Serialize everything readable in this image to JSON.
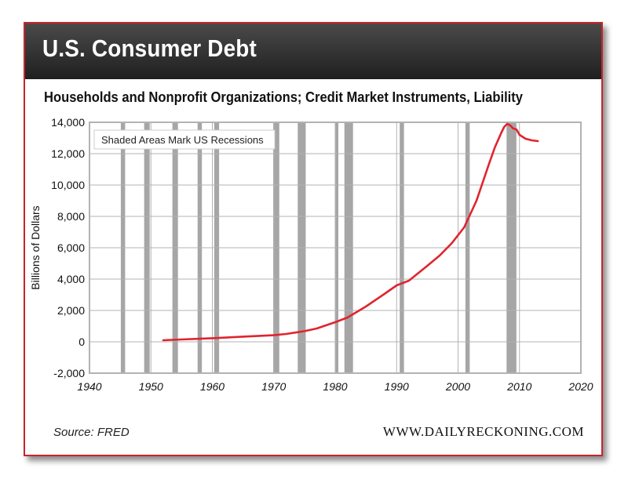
{
  "banner": {
    "title": "U.S. Consumer Debt"
  },
  "footer": {
    "source": "Source: FRED",
    "website": "WWW.DAILYRECKONING.COM"
  },
  "colors": {
    "line": "#e0242e",
    "recession": "#a6a6a6",
    "grid": "#b3b3b3",
    "frame": "#c8242b",
    "banner": "#2b2b2b"
  },
  "chart_data": {
    "type": "line",
    "title": "Households and Nonprofit Organizations; Credit Market Instruments, Liability",
    "xlabel": "",
    "ylabel": "Billions of Dollars",
    "xlim": [
      1940,
      2020
    ],
    "ylim": [
      -2000,
      14000
    ],
    "xticks": [
      1940,
      1950,
      1960,
      1970,
      1980,
      1990,
      2000,
      2010,
      2020
    ],
    "xtick_labels": [
      "1940",
      "1950",
      "1960",
      "1970",
      "1980",
      "1990",
      "2000",
      "2010",
      "2020"
    ],
    "yticks": [
      -2000,
      0,
      2000,
      4000,
      6000,
      8000,
      10000,
      12000,
      14000
    ],
    "ytick_labels": [
      "-2,000",
      "0",
      "2,000",
      "4,000",
      "6,000",
      "8,000",
      "10,000",
      "12,000",
      "14,000"
    ],
    "grid": true,
    "annotation": "Shaded Areas Mark US Recessions",
    "recessions": [
      [
        1945.1,
        1945.8
      ],
      [
        1948.9,
        1949.8
      ],
      [
        1953.5,
        1954.4
      ],
      [
        1957.6,
        1958.3
      ],
      [
        1960.3,
        1961.1
      ],
      [
        1969.9,
        1970.9
      ],
      [
        1973.9,
        1975.2
      ],
      [
        1980.0,
        1980.5
      ],
      [
        1981.5,
        1982.9
      ],
      [
        1990.5,
        1991.2
      ],
      [
        2001.2,
        2001.9
      ],
      [
        2007.9,
        2009.5
      ]
    ],
    "series": [
      {
        "x": [
          1952,
          1955,
          1960,
          1965,
          1970,
          1972,
          1975,
          1977,
          1980,
          1982,
          1985,
          1988,
          1990,
          1992,
          1995,
          1997,
          1999,
          2001,
          2003,
          2005,
          2006,
          2007,
          2007.5,
          2008,
          2008.5,
          2009,
          2009.5,
          2010,
          2011,
          2012,
          2013
        ],
        "y": [
          100,
          150,
          230,
          330,
          420,
          500,
          680,
          850,
          1250,
          1550,
          2250,
          3050,
          3600,
          3900,
          4850,
          5500,
          6300,
          7300,
          9000,
          11300,
          12400,
          13300,
          13700,
          13900,
          13800,
          13600,
          13550,
          13200,
          12950,
          12850,
          12800
        ]
      }
    ]
  }
}
